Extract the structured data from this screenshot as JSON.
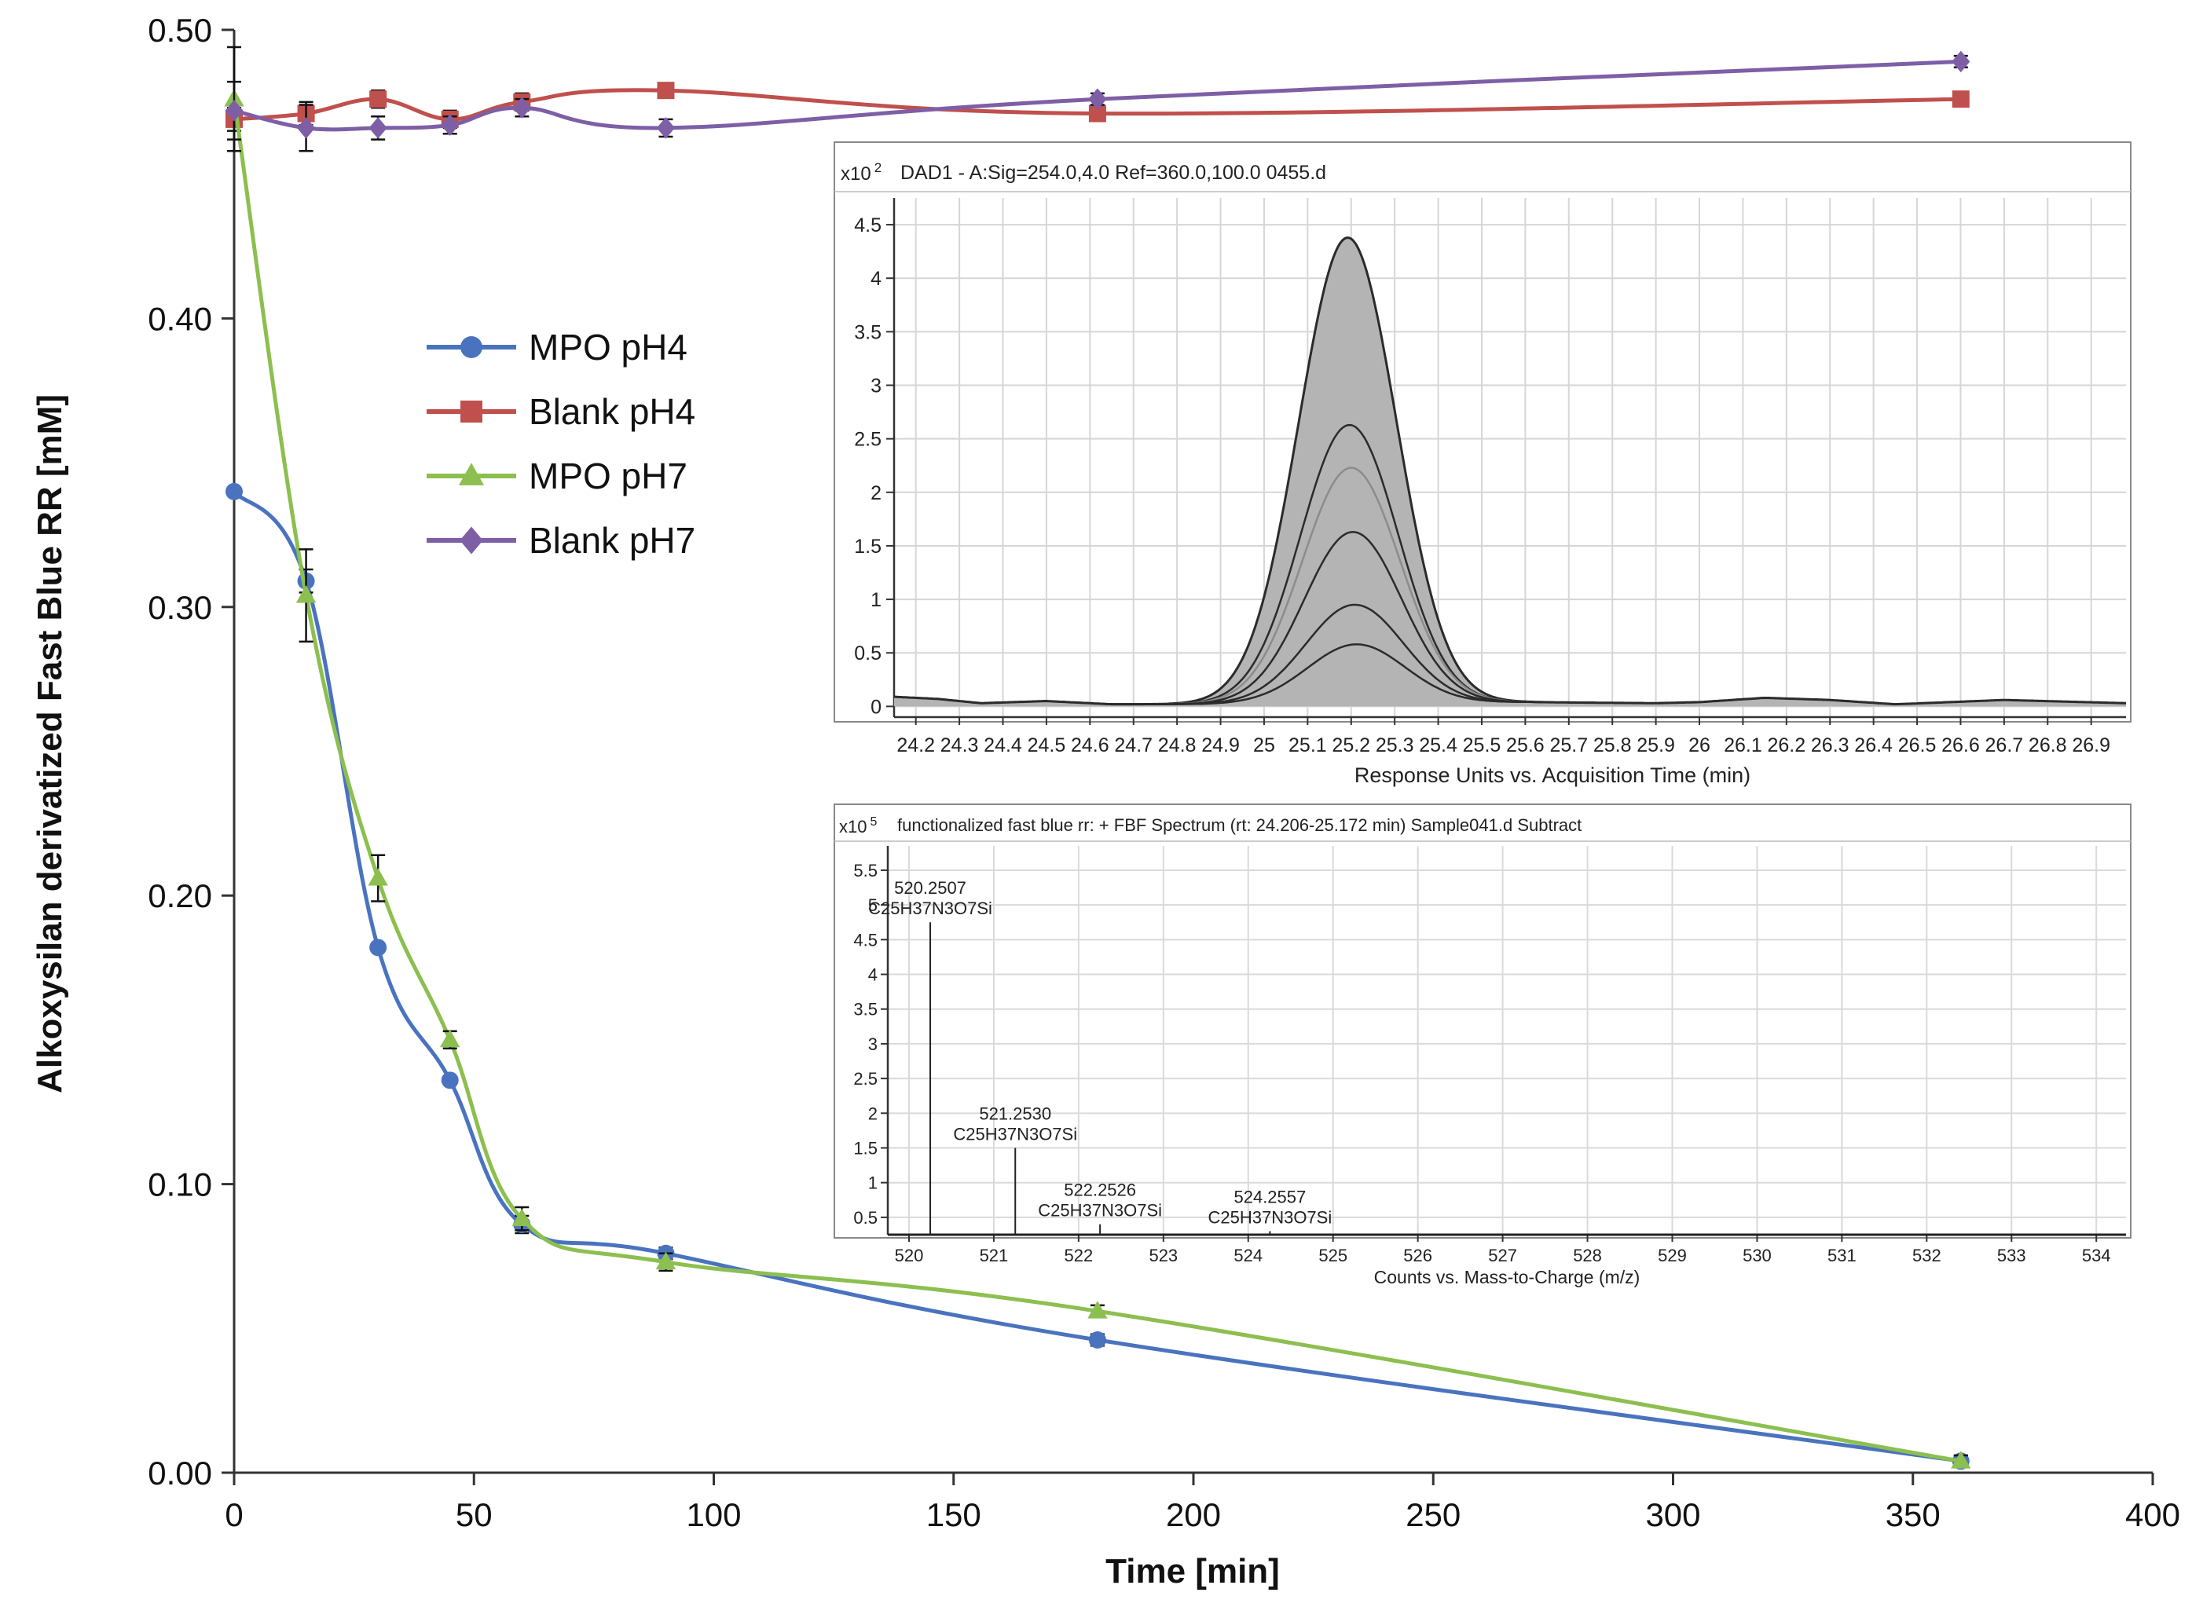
{
  "chart_data": [
    {
      "type": "line",
      "title": "",
      "xlabel": "Time [min]",
      "ylabel": "Alkoxysilan derivatized Fast Blue RR [mM]",
      "xlim": [
        0,
        400
      ],
      "ylim": [
        0,
        0.5
      ],
      "xticks": [
        "0",
        "50",
        "100",
        "150",
        "200",
        "250",
        "300",
        "350",
        "400"
      ],
      "yticks": [
        "0.00",
        "0.10",
        "0.20",
        "0.30",
        "0.40",
        "0.50"
      ],
      "legend_position": "upper-left",
      "x": [
        0,
        15,
        30,
        45,
        60,
        90,
        180,
        360
      ],
      "series": [
        {
          "name": "MPO pH4",
          "color": "#4a73bf",
          "marker": "circle",
          "values": [
            0.34,
            0.309,
            0.182,
            0.136,
            0.086,
            0.076,
            0.046,
            0.004
          ],
          "errors": [
            0,
            0.004,
            0,
            0,
            0.003,
            0.002,
            0.002,
            0.002
          ]
        },
        {
          "name": "Blank pH4",
          "color": "#c0504d",
          "marker": "square",
          "values": [
            0.469,
            0.471,
            0.476,
            0.469,
            0.475,
            0.479,
            0.471,
            0.476
          ],
          "errors": [
            0.004,
            0.004,
            0.003,
            0.003,
            0.003,
            0.002,
            0.002,
            0.002
          ]
        },
        {
          "name": "MPO pH7",
          "color": "#8cbf4f",
          "marker": "triangle",
          "values": [
            0.476,
            0.304,
            0.206,
            0.15,
            0.088,
            0.073,
            0.056,
            0.004
          ],
          "errors": [
            0.018,
            0.016,
            0.008,
            0.003,
            0.004,
            0.003,
            0.002,
            0.002
          ]
        },
        {
          "name": "Blank pH7",
          "color": "#7e5fa6",
          "marker": "diamond",
          "values": [
            0.472,
            0.466,
            0.466,
            0.467,
            0.473,
            0.466,
            0.476,
            0.489
          ],
          "errors": [
            0.01,
            0.008,
            0.004,
            0.003,
            0.003,
            0.003,
            0.002,
            0.002
          ]
        }
      ]
    },
    {
      "type": "area",
      "title": "DAD1 - A:Sig=254.0,4.0  Ref=360.0,100.0 0455.d",
      "ylabel_multiplier": "x10",
      "ylabel_exponent": "2",
      "xlabel": "Response Units vs. Acquisition Time (min)",
      "xlim": [
        24.15,
        26.98
      ],
      "ylim": [
        -0.1,
        4.75
      ],
      "xticks": [
        "24.2",
        "24.3",
        "24.4",
        "24.5",
        "24.6",
        "24.7",
        "24.8",
        "24.9",
        "25",
        "25.1",
        "25.2",
        "25.3",
        "25.4",
        "25.5",
        "25.6",
        "25.7",
        "25.8",
        "25.9",
        "26",
        "26.1",
        "26.2",
        "26.3",
        "26.4",
        "26.5",
        "26.6",
        "26.7",
        "26.8",
        "26.9"
      ],
      "yticks": [
        "0",
        "0.5",
        "1",
        "1.5",
        "2",
        "2.5",
        "3",
        "3.5",
        "4",
        "4.5"
      ],
      "peak_center": 25.2,
      "peak_heights": [
        4.35,
        2.6,
        2.2,
        1.6,
        0.92,
        0.55
      ],
      "baseline": [
        {
          "t": 24.15,
          "v": 0.09
        },
        {
          "t": 24.25,
          "v": 0.07
        },
        {
          "t": 24.35,
          "v": 0.03
        },
        {
          "t": 24.5,
          "v": 0.05
        },
        {
          "t": 24.65,
          "v": 0.02
        },
        {
          "t": 24.85,
          "v": 0.02
        },
        {
          "t": 25.6,
          "v": 0.04
        },
        {
          "t": 25.9,
          "v": 0.03
        },
        {
          "t": 26.0,
          "v": 0.04
        },
        {
          "t": 26.15,
          "v": 0.08
        },
        {
          "t": 26.3,
          "v": 0.06
        },
        {
          "t": 26.45,
          "v": 0.02
        },
        {
          "t": 26.7,
          "v": 0.06
        },
        {
          "t": 26.98,
          "v": 0.03
        }
      ]
    },
    {
      "type": "bar",
      "title": "functionalized fast blue rr: + FBF Spectrum (rt: 24.206-25.172 min) Sample041.d  Subtract",
      "ylabel_multiplier": "x10",
      "ylabel_exponent": "5",
      "xlabel": "Counts vs. Mass-to-Charge (m/z)",
      "xlim": [
        519.75,
        534.35
      ],
      "ylim": [
        0.25,
        5.85
      ],
      "xticks": [
        "520",
        "521",
        "522",
        "523",
        "524",
        "525",
        "526",
        "527",
        "528",
        "529",
        "530",
        "531",
        "532",
        "533",
        "534"
      ],
      "yticks": [
        "0.5",
        "1",
        "1.5",
        "2",
        "2.5",
        "3",
        "3.5",
        "4",
        "4.5",
        "5",
        "5.5"
      ],
      "peaks": [
        {
          "mz": 520.2507,
          "value": 4.75,
          "label": "520.2507",
          "formula": "C25H37N3O7Si"
        },
        {
          "mz": 521.253,
          "value": 1.5,
          "label": "521.2530",
          "formula": "C25H37N3O7Si"
        },
        {
          "mz": 522.2526,
          "value": 0.4,
          "label": "522.2526",
          "formula": "C25H37N3O7Si"
        },
        {
          "mz": 524.2557,
          "value": 0.3,
          "label": "524.2557",
          "formula": "C25H37N3O7Si"
        }
      ]
    }
  ]
}
